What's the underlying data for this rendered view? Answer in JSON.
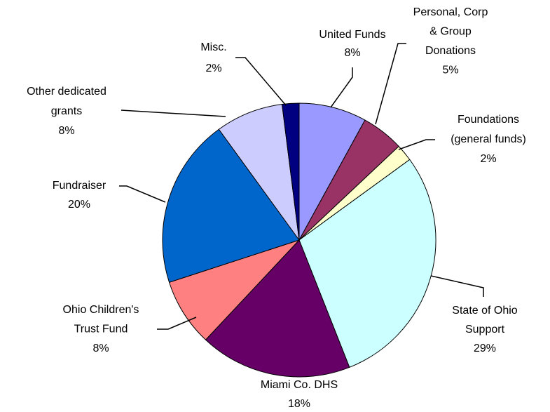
{
  "chart_data": {
    "type": "pie",
    "categories": [
      "United Funds",
      "Personal, Corp\n& Group\nDonations",
      "Foundations\n(general funds)",
      "State of Ohio\nSupport",
      "Miami Co. DHS",
      "Ohio Children's\nTrust Fund",
      "Fundraiser",
      "Other dedicated\ngrants",
      "Misc."
    ],
    "values": [
      8,
      5,
      2,
      29,
      18,
      8,
      20,
      8,
      2
    ],
    "value_labels": [
      "8%",
      "5%",
      "2%",
      "29%",
      "18%",
      "8%",
      "20%",
      "8%",
      "2%"
    ],
    "colors": [
      "#9999ff",
      "#993366",
      "#ffffcc",
      "#ccffff",
      "#660066",
      "#ff8080",
      "#0066cc",
      "#ccccff",
      "#000080"
    ]
  }
}
